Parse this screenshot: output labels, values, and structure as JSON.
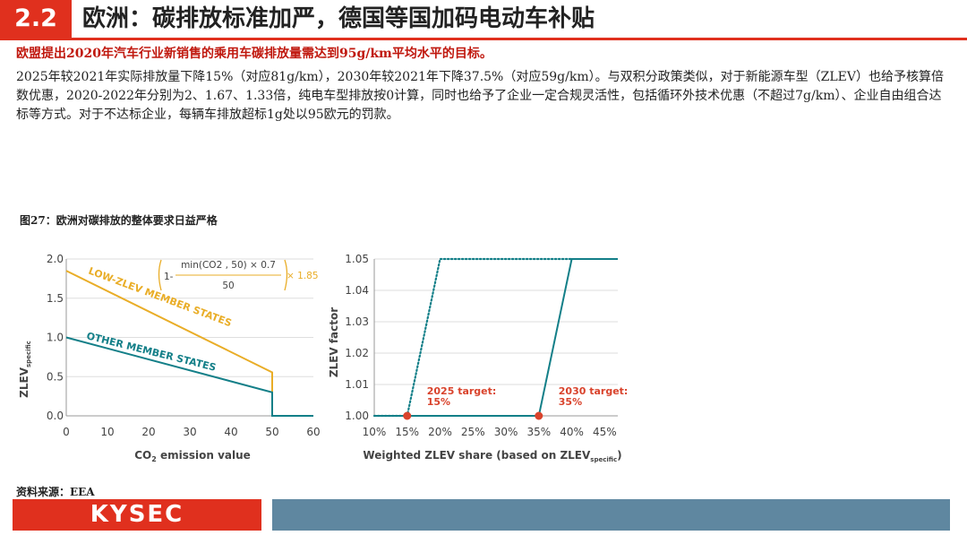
{
  "header": {
    "section_number": "2.2",
    "title": "欧洲：碳排放标准加严，德国等国加码电动车补贴"
  },
  "highlight": "欧盟提出2020年汽车行业新销售的乘用车碳排放量需达到95g/km平均水平的目标。",
  "body": "2025年较2021年实际排放量下降15%（对应81g/km），2030年较2021年下降37.5%（对应59g/km）。与双积分政策类似，对于新能源车型（ZLEV）也给予核算倍数优惠，2020-2022年分别为2、1.67、1.33倍，纯电车型排放按0计算，同时也给予了企业一定合规灵活性，包括循环外技术优惠（不超过7g/km）、企业自由组合达标等方式。对于不达标企业，每辆车排放超标1g处以95欧元的罚款。",
  "figure_title": "图27：欧洲对碳排放的整体要求日益严格",
  "source": "资料来源：EEA",
  "footer": {
    "logo_text": "KYSEC"
  },
  "colors": {
    "accent": "#e0301e",
    "gold": "#e9ad27",
    "teal": "#137f88",
    "target_dot": "#d9432c",
    "footer_gray": "#5f87a0"
  },
  "chart_data": [
    {
      "type": "line",
      "xlabel": "CO2 emission value",
      "ylabel": "ZLEVspecific",
      "xlim": [
        0,
        60
      ],
      "ylim": [
        0,
        2.0
      ],
      "xticks": [
        "0",
        "10",
        "20",
        "30",
        "40",
        "50",
        "60"
      ],
      "yticks": [
        "0.0",
        "0.5",
        "1.0",
        "1.5",
        "2.0"
      ],
      "formula": {
        "lead": "1-",
        "numerator": "min(CO2 , 50) × 0.7",
        "denominator": "50",
        "multiplier": "× 1.85"
      },
      "series": [
        {
          "name": "LOW-ZLEV MEMBER STATES",
          "color": "#e9ad27",
          "x": [
            0,
            50,
            50,
            60
          ],
          "y": [
            1.85,
            0.555,
            0.0,
            0.0
          ]
        },
        {
          "name": "OTHER MEMBER STATES",
          "color": "#137f88",
          "x": [
            0,
            50,
            50,
            60
          ],
          "y": [
            1.0,
            0.3,
            0.0,
            0.0
          ]
        }
      ]
    },
    {
      "type": "line",
      "xlabel": "Weighted ZLEV share (based on ZLEVspecific)",
      "ylabel": "ZLEV factor",
      "xlim": [
        10,
        47
      ],
      "ylim": [
        1.0,
        1.05
      ],
      "xticks": [
        "10%",
        "15%",
        "20%",
        "25%",
        "30%",
        "35%",
        "40%",
        "45%"
      ],
      "yticks": [
        "1.00",
        "1.01",
        "1.02",
        "1.03",
        "1.04",
        "1.05"
      ],
      "series": [
        {
          "name": "2025",
          "style": "dotted",
          "color": "#137f88",
          "x": [
            10,
            15,
            20,
            40
          ],
          "y": [
            1.0,
            1.0,
            1.05,
            1.05
          ]
        },
        {
          "name": "2030",
          "style": "solid",
          "color": "#137f88",
          "x": [
            10,
            35,
            40,
            47
          ],
          "y": [
            1.0,
            1.0,
            1.05,
            1.05
          ]
        }
      ],
      "annotations": [
        {
          "text": [
            "2025 target:",
            "15%"
          ],
          "x": 15,
          "y": 1.0
        },
        {
          "text": [
            "2030 target:",
            "35%"
          ],
          "x": 35,
          "y": 1.0
        }
      ]
    }
  ]
}
